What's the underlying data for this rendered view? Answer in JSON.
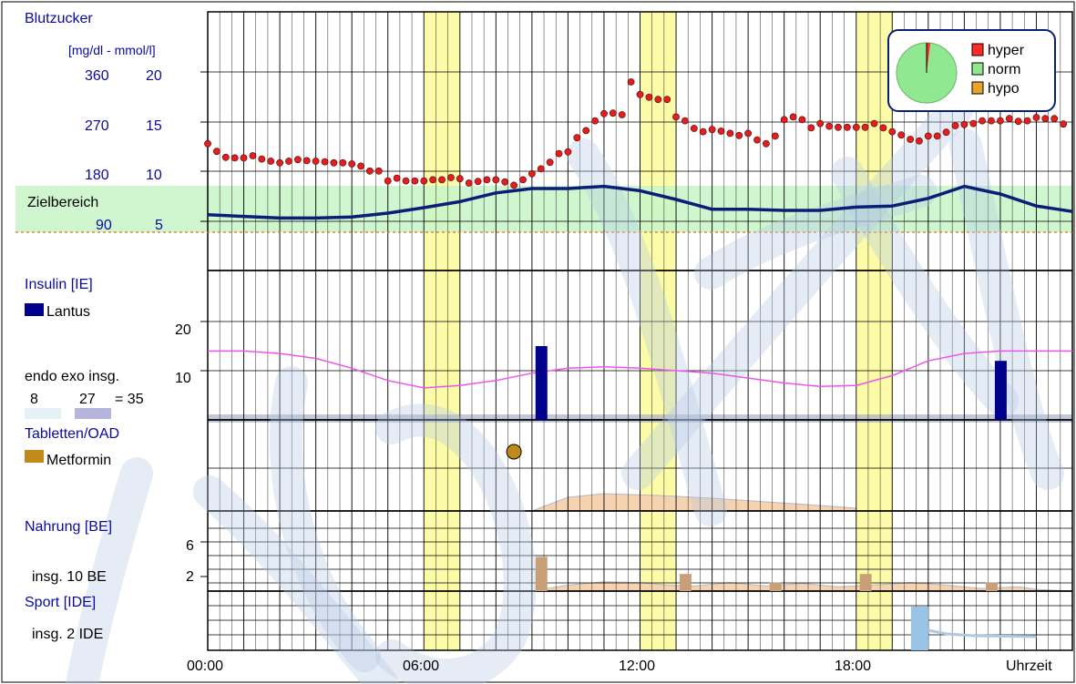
{
  "colors": {
    "glucose_points": "#e02020",
    "cgm_line": "#0a1e78",
    "target_band": "#c8f5c8",
    "yellow_band": "#fbfba8",
    "insulin_bar": "#00008c",
    "basal_curve": "#ee55ee",
    "tablet_dot": "#c08a1a",
    "food_bar": "#c8a078",
    "food_area": "#f5d3b0",
    "sport_bar": "#9ac4e6",
    "watermark": "#b4c8e6"
  },
  "chart_data": {
    "type": "line",
    "x_axis": {
      "ticks": [
        "00:00",
        "06:00",
        "12:00",
        "18:00"
      ],
      "label": "Uhrzeit",
      "range": [
        0,
        24
      ]
    },
    "highlight_hours": [
      [
        6,
        7
      ],
      [
        12,
        13
      ],
      [
        18,
        19
      ]
    ],
    "blood_glucose": {
      "title": "Blutzucker",
      "unit_label": "[mg/dl - mmol/l]",
      "ticks": [
        {
          "mgdl": "360",
          "mmol": "20",
          "value": 360
        },
        {
          "mgdl": "270",
          "mmol": "15",
          "value": 270
        },
        {
          "mgdl": "180",
          "mmol": "10",
          "value": 180
        },
        {
          "mgdl": "90",
          "mmol": "5",
          "value": 90
        }
      ],
      "target_label": "Zielbereich",
      "target_range": [
        70,
        155
      ],
      "hypo_line": 70,
      "ylim": [
        0,
        420
      ],
      "legend": [
        "hyper",
        "norm",
        "hypo"
      ],
      "distribution_pie": {
        "hyper": 2,
        "norm": 98,
        "hypo": 0
      },
      "points": [
        [
          0.0,
          232
        ],
        [
          0.25,
          218
        ],
        [
          0.5,
          207
        ],
        [
          0.75,
          206
        ],
        [
          1.0,
          206
        ],
        [
          1.25,
          210
        ],
        [
          1.5,
          204
        ],
        [
          1.75,
          200
        ],
        [
          2.0,
          197
        ],
        [
          2.25,
          200
        ],
        [
          2.5,
          203
        ],
        [
          2.75,
          201
        ],
        [
          3.0,
          200
        ],
        [
          3.25,
          199
        ],
        [
          3.5,
          197
        ],
        [
          3.75,
          197
        ],
        [
          4.0,
          195
        ],
        [
          4.25,
          191
        ],
        [
          4.5,
          182
        ],
        [
          4.75,
          182
        ],
        [
          5.0,
          164
        ],
        [
          5.25,
          169
        ],
        [
          5.5,
          164
        ],
        [
          5.75,
          164
        ],
        [
          6.0,
          164
        ],
        [
          6.25,
          166
        ],
        [
          6.5,
          166
        ],
        [
          6.75,
          170
        ],
        [
          7.0,
          168
        ],
        [
          7.25,
          160
        ],
        [
          7.5,
          163
        ],
        [
          7.75,
          166
        ],
        [
          8.0,
          166
        ],
        [
          8.25,
          162
        ],
        [
          8.5,
          156
        ],
        [
          8.75,
          166
        ],
        [
          9.0,
          177
        ],
        [
          9.25,
          186
        ],
        [
          9.5,
          198
        ],
        [
          9.75,
          214
        ],
        [
          10.0,
          217
        ],
        [
          10.25,
          243
        ],
        [
          10.5,
          256
        ],
        [
          10.75,
          274
        ],
        [
          11.0,
          287
        ],
        [
          11.25,
          288
        ],
        [
          11.5,
          285
        ],
        [
          11.75,
          345
        ],
        [
          12.0,
          322
        ],
        [
          12.25,
          317
        ],
        [
          12.5,
          313
        ],
        [
          12.75,
          313
        ],
        [
          13.0,
          281
        ],
        [
          13.25,
          274
        ],
        [
          13.5,
          260
        ],
        [
          13.75,
          254
        ],
        [
          14.0,
          258
        ],
        [
          14.25,
          255
        ],
        [
          14.5,
          251
        ],
        [
          14.75,
          247
        ],
        [
          15.0,
          251
        ],
        [
          15.25,
          239
        ],
        [
          15.5,
          232
        ],
        [
          15.75,
          246
        ],
        [
          16.0,
          276
        ],
        [
          16.25,
          281
        ],
        [
          16.5,
          276
        ],
        [
          16.75,
          261
        ],
        [
          17.0,
          269
        ],
        [
          17.25,
          264
        ],
        [
          17.5,
          262
        ],
        [
          17.75,
          262
        ],
        [
          18.0,
          262
        ],
        [
          18.25,
          262
        ],
        [
          18.5,
          269
        ],
        [
          18.75,
          261
        ],
        [
          19.0,
          254
        ],
        [
          19.25,
          248
        ],
        [
          19.5,
          240
        ],
        [
          19.75,
          237
        ],
        [
          20.0,
          246
        ],
        [
          20.25,
          246
        ],
        [
          20.5,
          253
        ],
        [
          20.75,
          265
        ],
        [
          21.0,
          267
        ],
        [
          21.25,
          269
        ],
        [
          21.5,
          274
        ],
        [
          21.75,
          274
        ],
        [
          22.0,
          274
        ],
        [
          22.25,
          278
        ],
        [
          22.5,
          273
        ],
        [
          22.75,
          274
        ],
        [
          23.0,
          280
        ],
        [
          23.25,
          278
        ],
        [
          23.5,
          278
        ],
        [
          23.75,
          268
        ]
      ],
      "cgm_curve": [
        [
          0.0,
          102
        ],
        [
          1.0,
          99
        ],
        [
          2.0,
          96
        ],
        [
          3.0,
          96
        ],
        [
          4.0,
          98
        ],
        [
          5.0,
          105
        ],
        [
          6.0,
          115
        ],
        [
          7.0,
          126
        ],
        [
          8.0,
          142
        ],
        [
          9.0,
          150
        ],
        [
          10.0,
          150
        ],
        [
          11.0,
          154
        ],
        [
          12.0,
          146
        ],
        [
          13.0,
          130
        ],
        [
          14.0,
          112
        ],
        [
          15.0,
          112
        ],
        [
          16.0,
          110
        ],
        [
          17.0,
          110
        ],
        [
          18.0,
          116
        ],
        [
          19.0,
          118
        ],
        [
          20.0,
          132
        ],
        [
          21.0,
          154
        ],
        [
          22.0,
          140
        ],
        [
          23.0,
          118
        ],
        [
          24.0,
          108
        ]
      ]
    },
    "insulin": {
      "title": "Insulin [IE]",
      "legend": "Lantus",
      "ticks": [
        {
          "label": "20",
          "value": 20
        },
        {
          "label": "10",
          "value": 10
        }
      ],
      "ylim": [
        0,
        30
      ],
      "summary_header": "endo exo insg.",
      "summary_values": {
        "endo": "8",
        "exo": "27",
        "total": "= 35"
      },
      "doses": [
        {
          "hour": 9.25,
          "value": 15,
          "type": "Lantus"
        },
        {
          "hour": 22.0,
          "value": 12,
          "type": "Lantus"
        }
      ],
      "basal_curve": [
        [
          0.0,
          14
        ],
        [
          1.0,
          14
        ],
        [
          2.0,
          13.5
        ],
        [
          3.0,
          12.5
        ],
        [
          4.0,
          10.5
        ],
        [
          5.0,
          8
        ],
        [
          6.0,
          6.5
        ],
        [
          7.0,
          7
        ],
        [
          8.0,
          8
        ],
        [
          9.0,
          9.5
        ],
        [
          10.0,
          10.5
        ],
        [
          11.0,
          10.8
        ],
        [
          12.0,
          10.5
        ],
        [
          13.0,
          10
        ],
        [
          14.0,
          9.5
        ],
        [
          15.0,
          8.5
        ],
        [
          16.0,
          7.5
        ],
        [
          17.0,
          6.8
        ],
        [
          18.0,
          7
        ],
        [
          19.0,
          9
        ],
        [
          20.0,
          12
        ],
        [
          21.0,
          13.5
        ],
        [
          22.0,
          14
        ],
        [
          23.0,
          14
        ],
        [
          24.0,
          14
        ]
      ]
    },
    "tablets": {
      "title": "Tabletten/OAD",
      "legend": "Metformin",
      "doses": [
        {
          "hour": 8.5,
          "type": "Metformin"
        }
      ]
    },
    "food": {
      "title": "Nahrung [BE]",
      "summary": "insg. 10 BE",
      "ticks": [
        {
          "label": "6",
          "value": 6
        },
        {
          "label": "2",
          "value": 2
        }
      ],
      "ylim": [
        0,
        8
      ],
      "meals": [
        {
          "hour": 9.25,
          "value": 4
        },
        {
          "hour": 13.25,
          "value": 2
        },
        {
          "hour": 15.75,
          "value": 1
        },
        {
          "hour": 18.25,
          "value": 2
        },
        {
          "hour": 21.75,
          "value": 1
        }
      ],
      "absorption_area": [
        [
          9.0,
          0
        ],
        [
          10.0,
          0.7
        ],
        [
          11.0,
          1.1
        ],
        [
          12.0,
          1.0
        ],
        [
          12.75,
          0.7
        ],
        [
          13.5,
          0.6
        ],
        [
          14.5,
          1.0
        ],
        [
          15.5,
          0.6
        ],
        [
          16.5,
          0.9
        ],
        [
          17.5,
          0.5
        ],
        [
          18.5,
          0.7
        ],
        [
          19.5,
          1.0
        ],
        [
          20.5,
          0.7
        ],
        [
          21.5,
          0.3
        ],
        [
          22.5,
          0.5
        ],
        [
          23.0,
          0.2
        ],
        [
          24.0,
          0
        ]
      ]
    },
    "sport": {
      "title": "Sport [IDE]",
      "summary": "insg. 2 IDE",
      "sessions": [
        {
          "hour": 19.75,
          "value": 2
        }
      ]
    }
  }
}
